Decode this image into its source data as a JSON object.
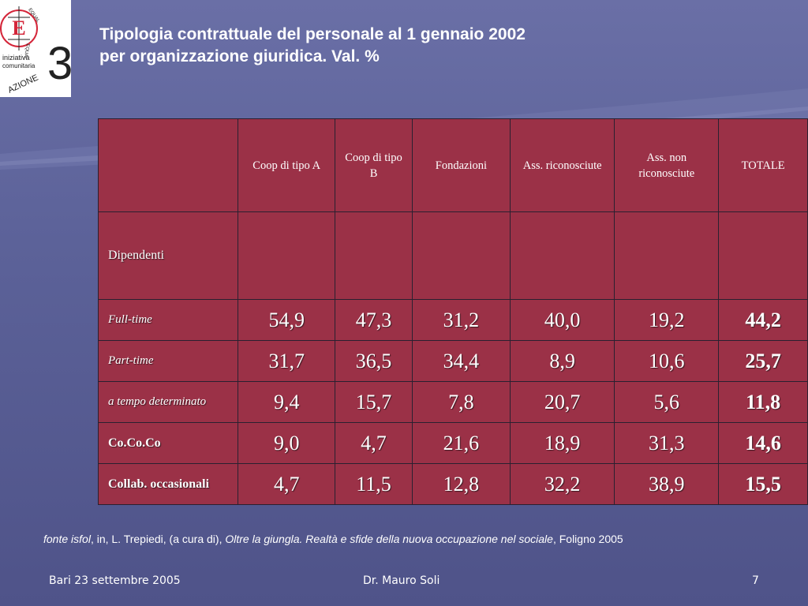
{
  "logo": {
    "letter": "E",
    "arc_top": "EQUAL",
    "arc_side": "EQUAL",
    "line1": "iniziativa",
    "line2": "comunitaria",
    "word": "AZIONE",
    "digit": "3",
    "accent": "#d4263a"
  },
  "title": {
    "line1": "Tipologia contrattuale del personale al 1 gennaio 2002",
    "line2": "per organizzazione giuridica. Val. %"
  },
  "table": {
    "columns": [
      "Coop di tipo A",
      "Coop di tipo B",
      "Fondazioni",
      "Ass. riconosciute",
      "Ass. non riconosciute",
      "TOTALE"
    ],
    "section_label": "Dipendenti",
    "rows": [
      {
        "label": "Full-time",
        "values": [
          "54,9",
          "47,3",
          "31,2",
          "40,0",
          "19,2"
        ],
        "total": "44,2"
      },
      {
        "label": "Part-time",
        "values": [
          "31,7",
          "36,5",
          "34,4",
          "8,9",
          "10,6"
        ],
        "total": "25,7"
      },
      {
        "label": "a tempo determinato",
        "values": [
          "9,4",
          "15,7",
          "7,8",
          "20,7",
          "5,6"
        ],
        "total": "11,8"
      },
      {
        "label": "Co.Co.Co",
        "values": [
          "9,0",
          "4,7",
          "21,6",
          "18,9",
          "31,3"
        ],
        "total": "14,6"
      },
      {
        "label": "Collab. occasionali",
        "values": [
          "4,7",
          "11,5",
          "12,8",
          "32,2",
          "38,9"
        ],
        "total": "15,5"
      }
    ],
    "cell_color": "#9b3147",
    "border_color": "#2a2030"
  },
  "source": {
    "prefix": "fonte isfol",
    "mid": ", in, L. Trepiedi, (a cura di), ",
    "book": "Oltre la giungla. Realtà e sfide della nuova occupazione nel sociale",
    "suffix": ", Foligno 2005"
  },
  "footer": {
    "left": "Bari 23 settembre 2005",
    "center": "Dr. Mauro Soli",
    "right": "7"
  },
  "colors": {
    "background": "#5c6299",
    "text": "#ffffff"
  }
}
